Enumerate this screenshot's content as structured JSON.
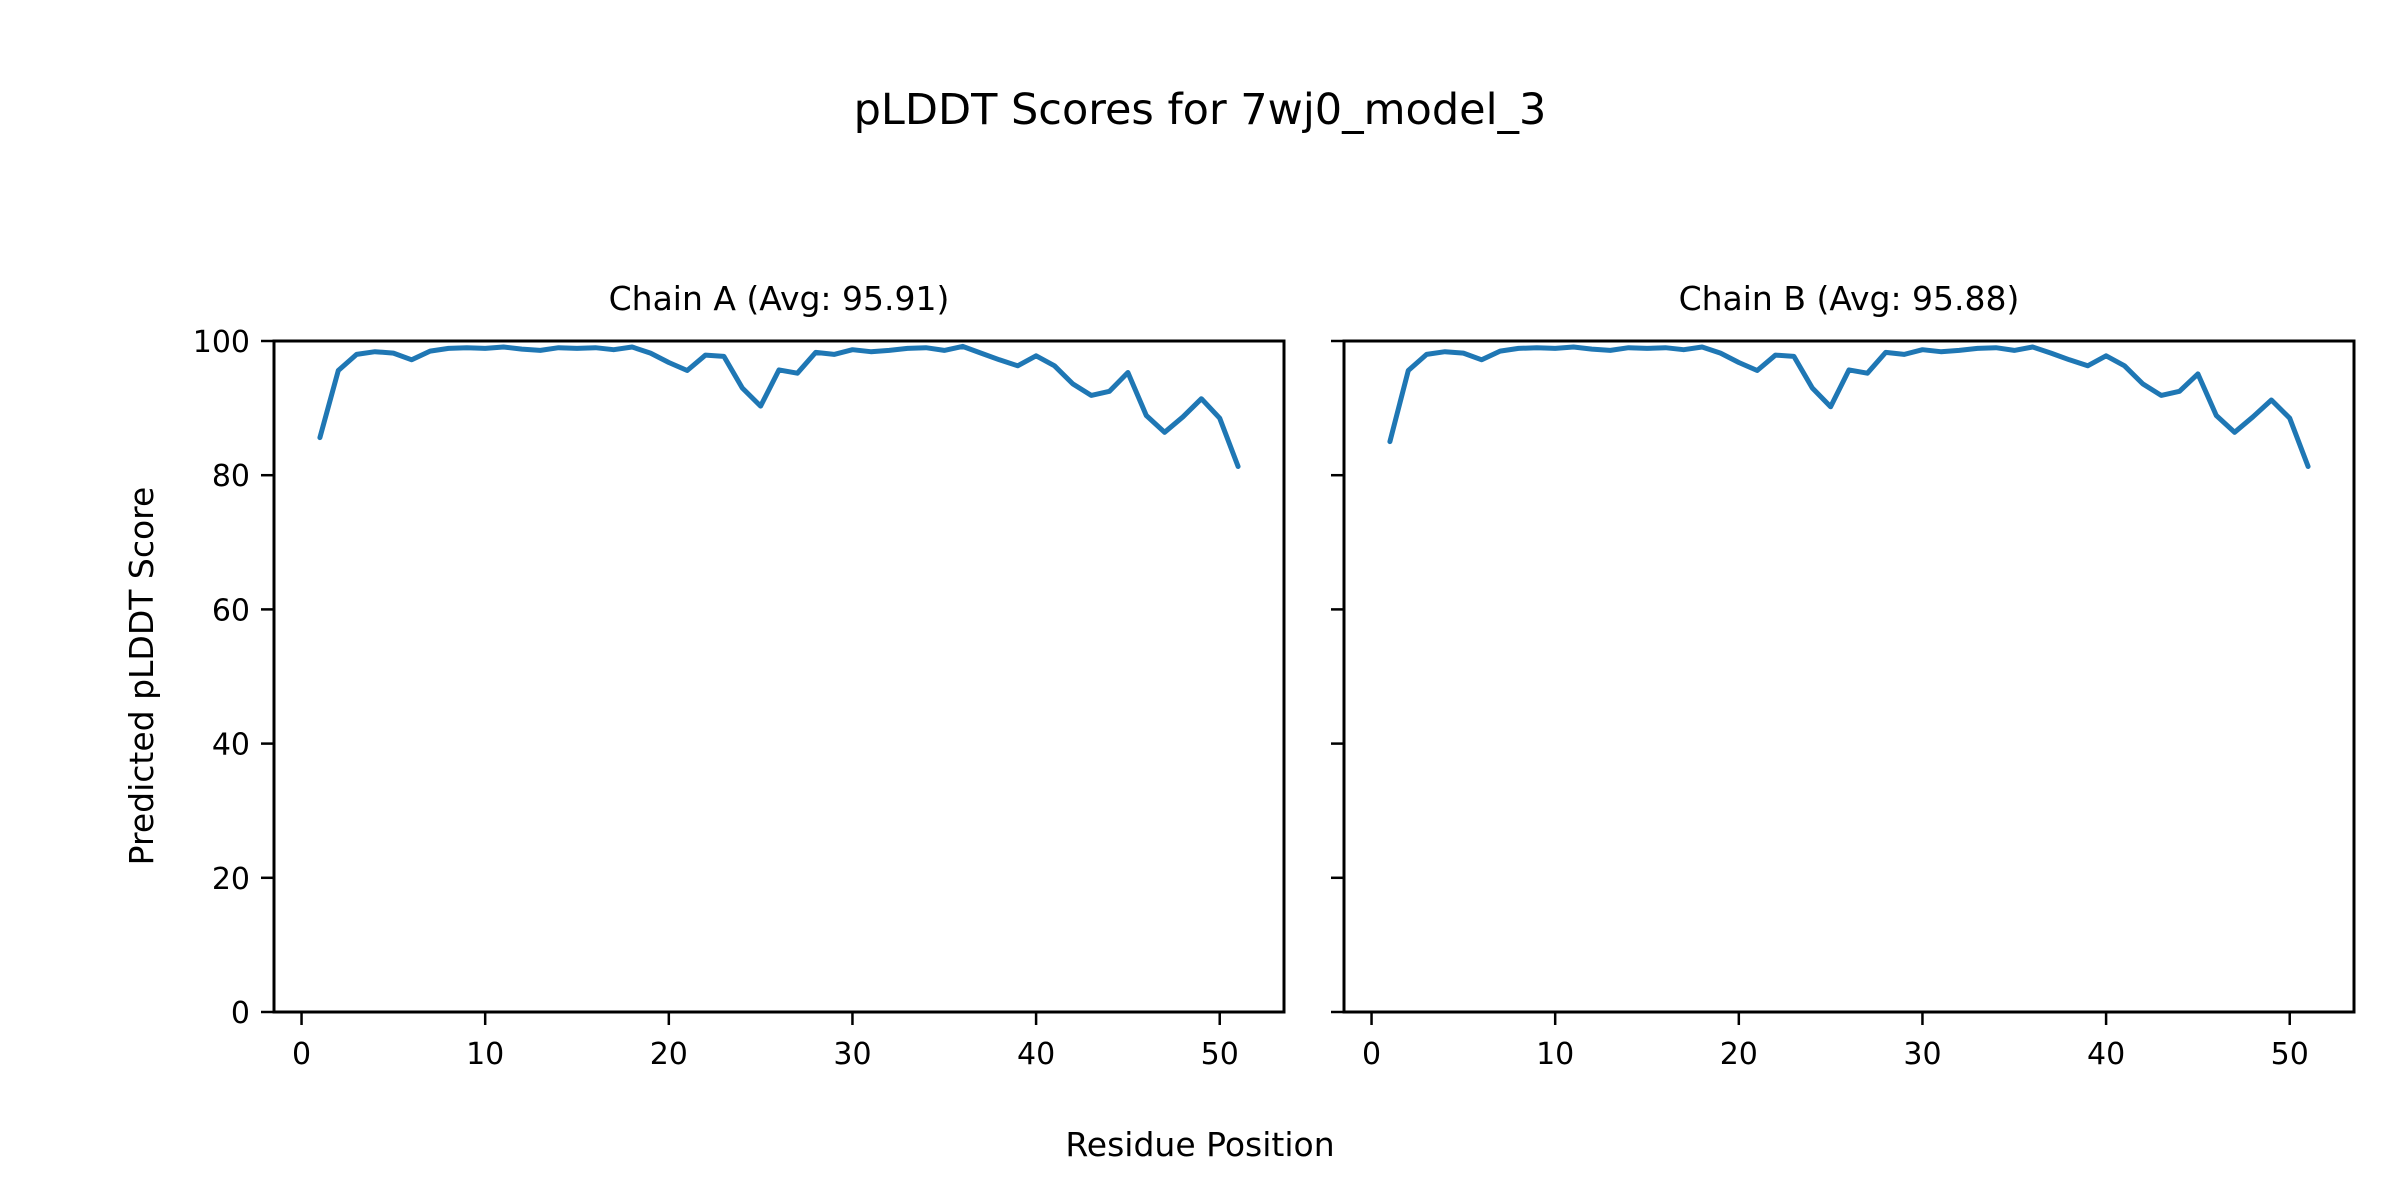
{
  "figure": {
    "title": "pLDDT Scores for 7wj0_model_3",
    "x_axis_label": "Residue Position",
    "y_axis_label": "Predicted pLDDT Score"
  },
  "chart_data": {
    "type": "line",
    "title": "pLDDT Scores for 7wj0_model_3",
    "xlabel": "Residue Position",
    "ylabel": "Predicted pLDDT Score",
    "line_color": "#1f77b4",
    "axis_color": "#000000",
    "grid": false,
    "legend": "none",
    "xlim": [
      -1.5,
      53.5
    ],
    "ylim": [
      0,
      100
    ],
    "xticks": [
      0,
      10,
      20,
      30,
      40,
      50
    ],
    "yticks": [
      0,
      20,
      40,
      60,
      80,
      100
    ],
    "x": [
      1,
      2,
      3,
      4,
      5,
      6,
      7,
      8,
      9,
      10,
      11,
      12,
      13,
      14,
      15,
      16,
      17,
      18,
      19,
      20,
      21,
      22,
      23,
      24,
      25,
      26,
      27,
      28,
      29,
      30,
      31,
      32,
      33,
      34,
      35,
      36,
      37,
      38,
      39,
      40,
      41,
      42,
      43,
      44,
      45,
      46,
      47,
      48,
      49,
      50,
      51
    ],
    "series": [
      {
        "name": "Chain A",
        "panel_title": "Chain A (Avg: 95.91)",
        "avg": 95.91,
        "values": [
          85.6,
          95.6,
          98.0,
          98.4,
          98.2,
          97.2,
          98.5,
          98.9,
          99.0,
          98.9,
          99.1,
          98.8,
          98.6,
          99.0,
          98.9,
          99.0,
          98.7,
          99.1,
          98.2,
          96.8,
          95.6,
          97.9,
          97.7,
          93.0,
          90.3,
          95.7,
          95.2,
          98.3,
          98.0,
          98.7,
          98.4,
          98.6,
          98.9,
          99.0,
          98.6,
          99.2,
          98.2,
          97.2,
          96.3,
          97.8,
          96.3,
          93.6,
          91.9,
          92.5,
          95.3,
          88.9,
          86.4,
          88.7,
          91.4,
          88.5,
          81.3
        ]
      },
      {
        "name": "Chain B",
        "panel_title": "Chain B (Avg: 95.88)",
        "avg": 95.88,
        "values": [
          85.0,
          95.6,
          98.0,
          98.4,
          98.2,
          97.2,
          98.5,
          98.9,
          99.0,
          98.9,
          99.1,
          98.8,
          98.6,
          99.0,
          98.9,
          99.0,
          98.7,
          99.1,
          98.2,
          96.8,
          95.6,
          97.9,
          97.7,
          93.0,
          90.2,
          95.7,
          95.2,
          98.3,
          98.0,
          98.7,
          98.4,
          98.6,
          98.9,
          99.0,
          98.6,
          99.1,
          98.2,
          97.2,
          96.3,
          97.8,
          96.3,
          93.6,
          91.9,
          92.5,
          95.1,
          88.9,
          86.4,
          88.7,
          91.2,
          88.5,
          81.3
        ]
      }
    ]
  }
}
